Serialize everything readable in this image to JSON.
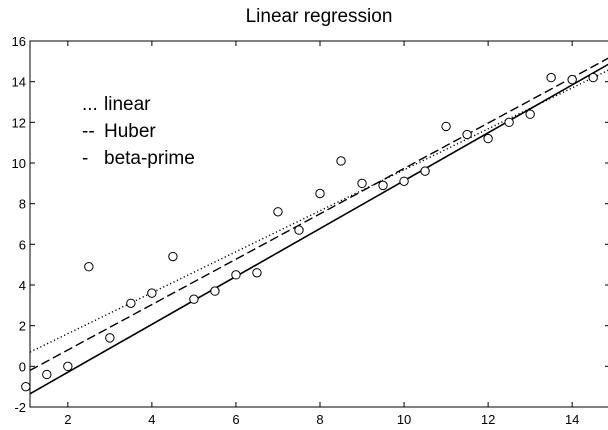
{
  "chart_data": {
    "type": "scatter",
    "title": "Linear regression",
    "xlabel": "",
    "ylabel": "",
    "xlim": [
      1.1,
      14.9
    ],
    "ylim": [
      -2,
      16
    ],
    "xticks": [
      2,
      4,
      6,
      8,
      10,
      12,
      14
    ],
    "yticks": [
      -2,
      0,
      2,
      4,
      6,
      8,
      10,
      12,
      14,
      16
    ],
    "grid": false,
    "legend_position": "top-left",
    "points": [
      {
        "x": 1,
        "y": -1.0
      },
      {
        "x": 1.5,
        "y": -0.4
      },
      {
        "x": 2,
        "y": 0.0
      },
      {
        "x": 2.5,
        "y": 4.9
      },
      {
        "x": 3,
        "y": 1.4
      },
      {
        "x": 3.5,
        "y": 3.1
      },
      {
        "x": 4,
        "y": 3.6
      },
      {
        "x": 4.5,
        "y": 5.4
      },
      {
        "x": 5,
        "y": 3.3
      },
      {
        "x": 5.5,
        "y": 3.7
      },
      {
        "x": 6,
        "y": 4.5
      },
      {
        "x": 6.5,
        "y": 4.6
      },
      {
        "x": 7,
        "y": 7.6
      },
      {
        "x": 7.5,
        "y": 6.7
      },
      {
        "x": 8,
        "y": 8.5
      },
      {
        "x": 8.5,
        "y": 10.1
      },
      {
        "x": 9,
        "y": 9.0
      },
      {
        "x": 9.5,
        "y": 8.9
      },
      {
        "x": 10,
        "y": 9.1
      },
      {
        "x": 10.5,
        "y": 9.6
      },
      {
        "x": 11,
        "y": 11.8
      },
      {
        "x": 11.5,
        "y": 11.4
      },
      {
        "x": 12,
        "y": 11.2
      },
      {
        "x": 12.5,
        "y": 12.0
      },
      {
        "x": 13,
        "y": 12.4
      },
      {
        "x": 13.5,
        "y": 14.2
      },
      {
        "x": 14,
        "y": 14.1
      },
      {
        "x": 14.5,
        "y": 14.2
      }
    ],
    "series": [
      {
        "name": "linear",
        "legend_marker": "...",
        "style": "dotted",
        "x": [
          1.1,
          14.9
        ],
        "y": [
          0.7,
          14.6
        ]
      },
      {
        "name": "Huber",
        "legend_marker": "--",
        "style": "dashed",
        "x": [
          1.1,
          14.9
        ],
        "y": [
          -0.2,
          15.2
        ]
      },
      {
        "name": "beta-prime",
        "legend_marker": "-",
        "style": "solid",
        "x": [
          1.1,
          14.9
        ],
        "y": [
          -1.35,
          14.9
        ]
      }
    ]
  }
}
